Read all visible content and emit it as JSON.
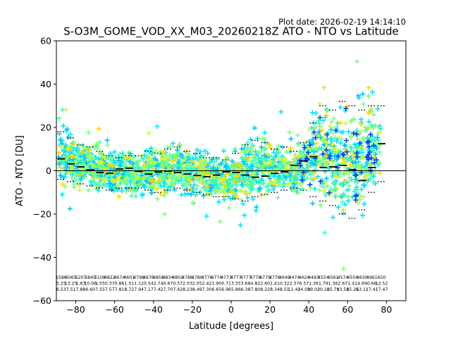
{
  "chart_data": {
    "type": "scatter",
    "title": "S-O3M_GOME_VOD_XX_M03_20260218Z ATO - NTO vs Latitude",
    "plot_date_label": "Plot date: 2026-02-19 14:14:10",
    "xlabel": "Latitude [degrees]",
    "ylabel": "ATO - NTO [DU]",
    "xlim": [
      -90,
      90
    ],
    "ylim": [
      -60,
      60
    ],
    "x_ticks": [
      -80,
      -60,
      -40,
      -20,
      0,
      20,
      40,
      60,
      80
    ],
    "x_tick_labels": [
      "−80",
      "−60",
      "−40",
      "−20",
      "0",
      "20",
      "40",
      "60",
      "80"
    ],
    "y_ticks": [
      -60,
      -40,
      -20,
      0,
      20,
      40,
      60
    ],
    "y_tick_labels": [
      "−60",
      "−40",
      "−20",
      "0",
      "20",
      "40",
      "60"
    ],
    "grid": false,
    "zero_line": true,
    "point_colors": [
      "#00e5ff",
      "#7fff7f",
      "#00bfff",
      "#ffd700",
      "#c8ff32",
      "#40ffb0",
      "#0040ff"
    ],
    "envelope_bins_lat": [
      -87.5,
      -82.5,
      -77.5,
      -72.5,
      -67.5,
      -62.5,
      -57.5,
      -52.5,
      -47.5,
      -42.5,
      -37.5,
      -32.5,
      -27.5,
      -22.5,
      -17.5,
      -12.5,
      -7.5,
      -2.5,
      2.5,
      7.5,
      12.5,
      17.5,
      22.5,
      27.5,
      32.5,
      37.5,
      42.5,
      47.5,
      52.5,
      57.5,
      62.5,
      67.5,
      72.5,
      77.5
    ],
    "bin_mean": [
      5.5,
      3.2,
      1.8,
      0.5,
      -0.8,
      -1.2,
      0.8,
      1.2,
      -0.3,
      -1.5,
      -0.5,
      -0.2,
      -0.8,
      -1.5,
      -2.2,
      -2.8,
      -2.0,
      -0.5,
      -0.8,
      -2.0,
      -3.0,
      -2.5,
      -1.2,
      -0.5,
      2.5,
      4.5,
      6.5,
      1.5,
      1.8,
      2.5,
      0.5,
      -4.5,
      1.5,
      12.5
    ],
    "bin_upper": [
      18,
      15,
      12,
      11,
      9,
      7,
      6,
      7,
      7,
      9,
      8,
      10,
      11,
      9,
      8,
      6,
      6,
      5,
      8,
      12,
      14,
      13,
      10,
      11,
      9,
      13,
      22,
      30,
      28,
      32,
      30,
      28,
      30,
      30
    ],
    "bin_lower": [
      -4,
      -5,
      -6,
      -7,
      -8,
      -9,
      -8,
      -8,
      -8,
      -9,
      -10,
      -9,
      -8,
      -9,
      -10,
      -11,
      -12,
      -12,
      -13,
      -14,
      -12,
      -11,
      -10,
      -9,
      -8,
      -9,
      -12,
      -14,
      -16,
      -20,
      -22,
      -18,
      -10,
      -5
    ],
    "bin_count_rows": [
      [
        "1586",
        "6065",
        "5207",
        "5845",
        "5108",
        "4822",
        "4674",
        "4601",
        "4798",
        "4876",
        "4858",
        "4834",
        "4802",
        "4786",
        "4780",
        "4776",
        "4774",
        "4773",
        "4777",
        "4777",
        "4778",
        "4779",
        "4776",
        "4649",
        "4474",
        "4424",
        "4493",
        "4554",
        "4561",
        "4574",
        "4554",
        "4650",
        "4961",
        "650"
      ],
      [
        "5.25",
        "13.25",
        "1.63",
        "10.06",
        "1.55",
        "0.37",
        "0.86",
        "1.51",
        "1.12",
        "0.54",
        "2.74",
        "0.67",
        "0.57",
        "2.03",
        "2.05",
        "2.42",
        "1.90",
        "0.71",
        "3.35",
        "3.68",
        "4.82",
        "2.60",
        "1.41",
        "0.32",
        "2.37",
        "6.57",
        "1.36",
        "1.79",
        "1.36",
        "2.67",
        "1.41",
        "4.69",
        "0.66",
        "12.52"
      ],
      [
        "6.53",
        "7.51",
        "7.88",
        "6.60",
        "7.55",
        "7.57",
        "7.81",
        "8.72",
        "7.94",
        "7.17",
        "7.42",
        "7.70",
        "7.42",
        "8.23",
        "8.49",
        "7.30",
        "6.65",
        "6.96",
        "5.86",
        "6.38",
        "7.80",
        "8.22",
        "8.34",
        "8.51",
        "11.42",
        "14.00",
        "19.02",
        "20.10",
        "15.79",
        "13.58",
        "15.26",
        "13.11",
        "17.41",
        "17.47"
      ]
    ]
  }
}
